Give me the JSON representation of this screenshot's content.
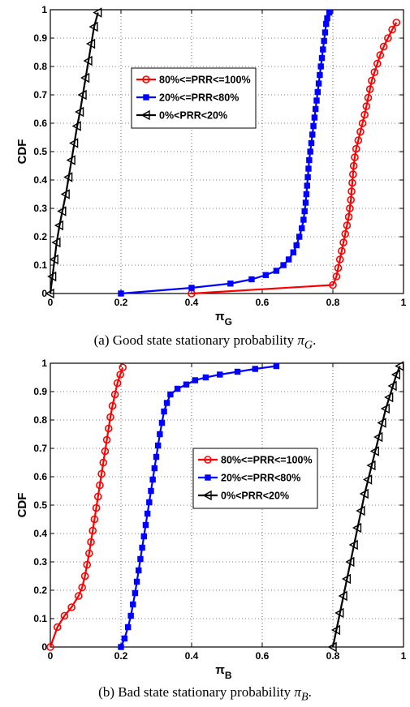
{
  "captions": [
    {
      "prefix": "(a) Good state stationary probability ",
      "symbol": "π",
      "sub": "G",
      "suffix": "."
    },
    {
      "prefix": "(b) Bad state stationary probability ",
      "symbol": "π",
      "sub": "B",
      "suffix": "."
    }
  ],
  "chart_data": [
    {
      "type": "line",
      "xlabel": "π",
      "xlabel_sub": "G",
      "ylabel": "CDF",
      "xlim": [
        0,
        1
      ],
      "ylim": [
        0,
        1
      ],
      "xticks": [
        "0",
        "0.2",
        "0.4",
        "0.6",
        "0.8",
        "1"
      ],
      "yticks": [
        "0",
        "0.1",
        "0.2",
        "0.3",
        "0.4",
        "0.5",
        "0.6",
        "0.7",
        "0.8",
        "0.9",
        "1"
      ],
      "grid": true,
      "legend_position": "center",
      "series": [
        {
          "name": "80%<=PRR<=100%",
          "color": "#ff0000",
          "marker": "circle",
          "points": [
            [
              0.4,
              0
            ],
            [
              0.8,
              0.03
            ],
            [
              0.81,
              0.06
            ],
            [
              0.815,
              0.09
            ],
            [
              0.82,
              0.12
            ],
            [
              0.825,
              0.15
            ],
            [
              0.83,
              0.18
            ],
            [
              0.835,
              0.21
            ],
            [
              0.84,
              0.24
            ],
            [
              0.845,
              0.27
            ],
            [
              0.848,
              0.3
            ],
            [
              0.851,
              0.33
            ],
            [
              0.853,
              0.36
            ],
            [
              0.855,
              0.39
            ],
            [
              0.857,
              0.42
            ],
            [
              0.859,
              0.45
            ],
            [
              0.862,
              0.48
            ],
            [
              0.866,
              0.51
            ],
            [
              0.872,
              0.54
            ],
            [
              0.878,
              0.57
            ],
            [
              0.884,
              0.6
            ],
            [
              0.89,
              0.63
            ],
            [
              0.895,
              0.66
            ],
            [
              0.9,
              0.69
            ],
            [
              0.905,
              0.72
            ],
            [
              0.91,
              0.75
            ],
            [
              0.918,
              0.78
            ],
            [
              0.926,
              0.81
            ],
            [
              0.934,
              0.84
            ],
            [
              0.944,
              0.87
            ],
            [
              0.956,
              0.9
            ],
            [
              0.968,
              0.93
            ],
            [
              0.98,
              0.955
            ]
          ]
        },
        {
          "name": "20%<=PRR<80%",
          "color": "#0000ff",
          "marker": "square",
          "points": [
            [
              0.2,
              0
            ],
            [
              0.4,
              0.02
            ],
            [
              0.51,
              0.035
            ],
            [
              0.57,
              0.05
            ],
            [
              0.61,
              0.065
            ],
            [
              0.64,
              0.08
            ],
            [
              0.66,
              0.1
            ],
            [
              0.675,
              0.12
            ],
            [
              0.688,
              0.145
            ],
            [
              0.697,
              0.17
            ],
            [
              0.705,
              0.2
            ],
            [
              0.712,
              0.23
            ],
            [
              0.717,
              0.26
            ],
            [
              0.72,
              0.29
            ],
            [
              0.723,
              0.32
            ],
            [
              0.725,
              0.35
            ],
            [
              0.727,
              0.38
            ],
            [
              0.729,
              0.41
            ],
            [
              0.731,
              0.44
            ],
            [
              0.733,
              0.47
            ],
            [
              0.736,
              0.5
            ],
            [
              0.739,
              0.53
            ],
            [
              0.742,
              0.56
            ],
            [
              0.745,
              0.59
            ],
            [
              0.748,
              0.62
            ],
            [
              0.751,
              0.65
            ],
            [
              0.754,
              0.68
            ],
            [
              0.757,
              0.71
            ],
            [
              0.76,
              0.74
            ],
            [
              0.763,
              0.77
            ],
            [
              0.766,
              0.8
            ],
            [
              0.769,
              0.83
            ],
            [
              0.772,
              0.86
            ],
            [
              0.775,
              0.89
            ],
            [
              0.778,
              0.92
            ],
            [
              0.781,
              0.95
            ],
            [
              0.784,
              0.97
            ],
            [
              0.79,
              0.99
            ]
          ]
        },
        {
          "name": "0%<PRR<20%",
          "color": "#000000",
          "marker": "triangle-left",
          "points": [
            [
              0,
              0
            ],
            [
              0.006,
              0.06
            ],
            [
              0.012,
              0.12
            ],
            [
              0.018,
              0.18
            ],
            [
              0.026,
              0.24
            ],
            [
              0.034,
              0.29
            ],
            [
              0.044,
              0.35
            ],
            [
              0.052,
              0.41
            ],
            [
              0.06,
              0.47
            ],
            [
              0.068,
              0.53
            ],
            [
              0.076,
              0.59
            ],
            [
              0.084,
              0.64
            ],
            [
              0.092,
              0.7
            ],
            [
              0.1,
              0.76
            ],
            [
              0.108,
              0.82
            ],
            [
              0.116,
              0.88
            ],
            [
              0.124,
              0.94
            ],
            [
              0.135,
              0.99
            ]
          ]
        }
      ]
    },
    {
      "type": "line",
      "xlabel": "π",
      "xlabel_sub": "B",
      "ylabel": "CDF",
      "xlim": [
        0,
        1
      ],
      "ylim": [
        0,
        1
      ],
      "xticks": [
        "0",
        "0.2",
        "0.4",
        "0.6",
        "0.8",
        "1"
      ],
      "yticks": [
        "0",
        "0.1",
        "0.2",
        "0.3",
        "0.4",
        "0.5",
        "0.6",
        "0.7",
        "0.8",
        "0.9",
        "1"
      ],
      "grid": true,
      "legend_position": "right",
      "series": [
        {
          "name": "80%<=PRR<=100%",
          "color": "#ff0000",
          "marker": "circle",
          "points": [
            [
              0,
              0
            ],
            [
              0.02,
              0.07
            ],
            [
              0.04,
              0.11
            ],
            [
              0.06,
              0.14
            ],
            [
              0.08,
              0.18
            ],
            [
              0.09,
              0.21
            ],
            [
              0.098,
              0.25
            ],
            [
              0.104,
              0.29
            ],
            [
              0.11,
              0.33
            ],
            [
              0.115,
              0.37
            ],
            [
              0.12,
              0.41
            ],
            [
              0.125,
              0.45
            ],
            [
              0.13,
              0.49
            ],
            [
              0.135,
              0.53
            ],
            [
              0.14,
              0.57
            ],
            [
              0.145,
              0.61
            ],
            [
              0.15,
              0.65
            ],
            [
              0.155,
              0.69
            ],
            [
              0.16,
              0.73
            ],
            [
              0.165,
              0.77
            ],
            [
              0.17,
              0.81
            ],
            [
              0.176,
              0.85
            ],
            [
              0.183,
              0.89
            ],
            [
              0.19,
              0.93
            ],
            [
              0.198,
              0.96
            ],
            [
              0.205,
              0.985
            ]
          ]
        },
        {
          "name": "20%<=PRR<80%",
          "color": "#0000ff",
          "marker": "square",
          "points": [
            [
              0.2,
              0
            ],
            [
              0.21,
              0.03
            ],
            [
              0.22,
              0.07
            ],
            [
              0.228,
              0.11
            ],
            [
              0.234,
              0.15
            ],
            [
              0.24,
              0.19
            ],
            [
              0.245,
              0.23
            ],
            [
              0.25,
              0.27
            ],
            [
              0.255,
              0.31
            ],
            [
              0.26,
              0.35
            ],
            [
              0.265,
              0.39
            ],
            [
              0.27,
              0.43
            ],
            [
              0.275,
              0.47
            ],
            [
              0.28,
              0.51
            ],
            [
              0.285,
              0.55
            ],
            [
              0.29,
              0.59
            ],
            [
              0.295,
              0.63
            ],
            [
              0.3,
              0.67
            ],
            [
              0.305,
              0.71
            ],
            [
              0.31,
              0.75
            ],
            [
              0.316,
              0.79
            ],
            [
              0.322,
              0.83
            ],
            [
              0.33,
              0.86
            ],
            [
              0.34,
              0.89
            ],
            [
              0.36,
              0.91
            ],
            [
              0.385,
              0.925
            ],
            [
              0.41,
              0.94
            ],
            [
              0.44,
              0.95
            ],
            [
              0.48,
              0.96
            ],
            [
              0.53,
              0.97
            ],
            [
              0.58,
              0.98
            ],
            [
              0.64,
              0.99
            ]
          ]
        },
        {
          "name": "0%<PRR<20%",
          "color": "#000000",
          "marker": "triangle-left",
          "points": [
            [
              0.8,
              0
            ],
            [
              0.81,
              0.06
            ],
            [
              0.82,
              0.12
            ],
            [
              0.83,
              0.18
            ],
            [
              0.84,
              0.24
            ],
            [
              0.85,
              0.3
            ],
            [
              0.86,
              0.36
            ],
            [
              0.87,
              0.42
            ],
            [
              0.88,
              0.48
            ],
            [
              0.89,
              0.54
            ],
            [
              0.9,
              0.59
            ],
            [
              0.91,
              0.64
            ],
            [
              0.92,
              0.69
            ],
            [
              0.93,
              0.74
            ],
            [
              0.94,
              0.79
            ],
            [
              0.95,
              0.84
            ],
            [
              0.96,
              0.88
            ],
            [
              0.97,
              0.92
            ],
            [
              0.98,
              0.96
            ],
            [
              0.99,
              0.99
            ]
          ]
        }
      ]
    }
  ]
}
